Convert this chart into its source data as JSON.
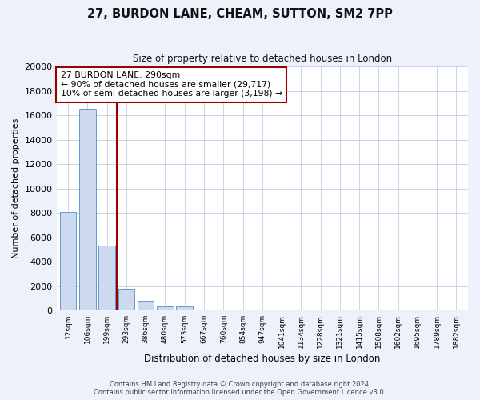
{
  "title": "27, BURDON LANE, CHEAM, SUTTON, SM2 7PP",
  "subtitle": "Size of property relative to detached houses in London",
  "xlabel": "Distribution of detached houses by size in London",
  "ylabel": "Number of detached properties",
  "bar_values": [
    8100,
    16500,
    5300,
    1800,
    800,
    300,
    300,
    0,
    0,
    0,
    0,
    0,
    0,
    0,
    0,
    0,
    0,
    0,
    0,
    0
  ],
  "bar_labels": [
    "12sqm",
    "106sqm",
    "199sqm",
    "293sqm",
    "386sqm",
    "480sqm",
    "573sqm",
    "667sqm",
    "760sqm",
    "854sqm",
    "947sqm",
    "1041sqm",
    "1134sqm",
    "1228sqm",
    "1321sqm",
    "1415sqm",
    "1508sqm",
    "1602sqm",
    "1695sqm",
    "1789sqm",
    "1882sqm"
  ],
  "bar_color": "#ccd9ee",
  "bar_edge_color": "#6699cc",
  "vline_x": 2.5,
  "vline_color": "#990000",
  "annotation_title": "27 BURDON LANE: 290sqm",
  "annotation_line1": "← 90% of detached houses are smaller (29,717)",
  "annotation_line2": "10% of semi-detached houses are larger (3,198) →",
  "annotation_box_color": "#ffffff",
  "annotation_box_edge": "#990000",
  "ylim": [
    0,
    20000
  ],
  "yticks": [
    0,
    2000,
    4000,
    6000,
    8000,
    10000,
    12000,
    14000,
    16000,
    18000,
    20000
  ],
  "footer_line1": "Contains HM Land Registry data © Crown copyright and database right 2024.",
  "footer_line2": "Contains public sector information licensed under the Open Government Licence v3.0.",
  "bg_color": "#edf2fa",
  "plot_bg_color": "#ffffff",
  "grid_color": "#c0cfe8"
}
